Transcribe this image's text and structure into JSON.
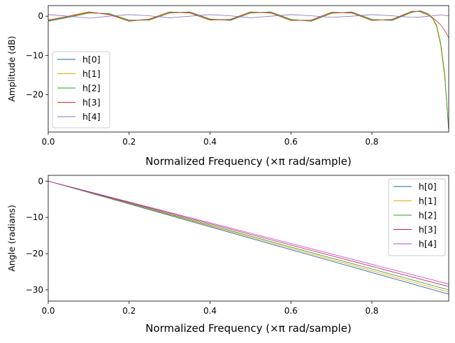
{
  "chart_data": [
    {
      "type": "line",
      "xlabel": "Normalized Frequency (×π rad/sample)",
      "ylabel": "Amplitude (dB)",
      "xlim": [
        0,
        0.99
      ],
      "ylim": [
        -29.5,
        2.7
      ],
      "xticks": [
        0.0,
        0.2,
        0.4,
        0.6,
        0.8
      ],
      "xtick_labels": [
        "0.0",
        "0.2",
        "0.4",
        "0.6",
        "0.8"
      ],
      "yticks": [
        0,
        -10,
        -20
      ],
      "ytick_labels": [
        "0",
        "−10",
        "−20"
      ],
      "grid": false,
      "legend_position": "lower-left",
      "x": [
        0.0,
        0.05,
        0.1,
        0.15,
        0.2,
        0.25,
        0.3,
        0.35,
        0.4,
        0.45,
        0.5,
        0.55,
        0.6,
        0.65,
        0.7,
        0.75,
        0.8,
        0.85,
        0.9,
        0.92,
        0.94,
        0.95,
        0.96,
        0.97,
        0.98,
        0.99
      ],
      "series": [
        {
          "name": "h[0]",
          "color": "#1f5fa8",
          "values": [
            -1.2,
            -0.2,
            0.9,
            0.6,
            -1.1,
            -0.9,
            0.9,
            1.0,
            -0.8,
            -1.0,
            0.9,
            1.0,
            -0.9,
            -1.2,
            0.8,
            1.0,
            -0.9,
            -1.0,
            1.1,
            1.3,
            0.5,
            -0.5,
            -2.5,
            -7.0,
            -15.0,
            -29.0
          ]
        },
        {
          "name": "h[1]",
          "color": "#e8a800",
          "values": [
            -1.1,
            -0.1,
            1.0,
            0.5,
            -1.2,
            -0.8,
            1.0,
            0.9,
            -0.9,
            -0.9,
            1.0,
            0.9,
            -1.0,
            -1.1,
            0.9,
            0.9,
            -1.0,
            -0.9,
            1.2,
            1.2,
            0.4,
            -0.6,
            -2.7,
            -7.4,
            -15.5,
            -29.0
          ]
        },
        {
          "name": "h[2]",
          "color": "#2e9b2e",
          "values": [
            -1.3,
            -0.3,
            0.8,
            0.7,
            -1.0,
            -1.0,
            0.8,
            1.1,
            -0.7,
            -1.1,
            0.8,
            1.1,
            -0.8,
            -1.3,
            0.7,
            1.1,
            -0.8,
            -1.1,
            1.0,
            1.4,
            0.6,
            -0.4,
            -2.3,
            -6.8,
            -14.5,
            -29.0
          ]
        },
        {
          "name": "h[3]",
          "color": "#d62728",
          "values": [
            -1.0,
            0.0,
            1.1,
            0.4,
            -1.3,
            -0.7,
            1.1,
            0.8,
            -1.0,
            -0.8,
            1.1,
            0.8,
            -1.1,
            -1.0,
            1.0,
            0.8,
            -1.1,
            -0.8,
            1.3,
            1.1,
            0.2,
            -0.4,
            -1.2,
            -2.2,
            -3.6,
            -5.5
          ]
        },
        {
          "name": "h[4]",
          "color": "#8e6bbf",
          "values": [
            0.4,
            0.0,
            -0.5,
            0.0,
            0.4,
            0.1,
            -0.4,
            0.0,
            0.4,
            0.1,
            -0.4,
            0.0,
            0.4,
            0.1,
            -0.3,
            0.0,
            0.4,
            0.1,
            -0.3,
            -0.2,
            0.0,
            0.1,
            0.2,
            0.3,
            0.2,
            0.1
          ]
        }
      ]
    },
    {
      "type": "line",
      "xlabel": "Normalized Frequency (×π rad/sample)",
      "ylabel": "Angle (radians)",
      "xlim": [
        0,
        0.99
      ],
      "ylim": [
        -33.1,
        1.6
      ],
      "xticks": [
        0.0,
        0.2,
        0.4,
        0.6,
        0.8
      ],
      "xtick_labels": [
        "0.0",
        "0.2",
        "0.4",
        "0.6",
        "0.8"
      ],
      "yticks": [
        0,
        -10,
        -20,
        -30
      ],
      "ytick_labels": [
        "0",
        "−10",
        "−20",
        "−30"
      ],
      "grid": false,
      "legend_position": "top-right",
      "x": [
        0.0,
        0.99
      ],
      "series": [
        {
          "name": "h[0]",
          "color": "#1f5fa8",
          "values": [
            0.0,
            -31.2
          ]
        },
        {
          "name": "h[1]",
          "color": "#e8a800",
          "values": [
            0.0,
            -30.6
          ]
        },
        {
          "name": "h[2]",
          "color": "#2e9b2e",
          "values": [
            0.0,
            -30.0
          ]
        },
        {
          "name": "h[3]",
          "color": "#c0165a",
          "values": [
            0.0,
            -29.1
          ]
        },
        {
          "name": "h[4]",
          "color": "#c040c8",
          "values": [
            0.0,
            -28.4
          ]
        }
      ]
    }
  ]
}
